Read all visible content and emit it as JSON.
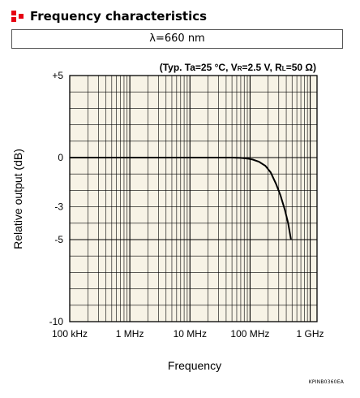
{
  "heading": {
    "title": "Frequency characteristics",
    "icon": "red-square-cluster-icon",
    "icon_color": "#e60012"
  },
  "wavelength_label": "λ=660 nm",
  "catalog_code": "KPINB0360EA",
  "colors": {
    "plot_background": "#f7f3e6",
    "grid": "#000000",
    "curve": "#000000"
  },
  "chart_data": {
    "type": "line",
    "title": "",
    "conditions": {
      "prefix": "(Typ. Ta=25 °C, V",
      "vr_sub": "R",
      "vr_rest": "=2.5 V, R",
      "rl_sub": "L",
      "rl_rest": "=50 Ω)"
    },
    "xlabel": "Frequency",
    "ylabel": "Relative output (dB)",
    "x_scale": "log",
    "xlim": [
      100000,
      1300000000
    ],
    "ylim": [
      -10,
      5
    ],
    "x_ticks": [
      {
        "value": 100000,
        "label": "100 kHz"
      },
      {
        "value": 1000000,
        "label": "1 MHz"
      },
      {
        "value": 10000000,
        "label": "10 MHz"
      },
      {
        "value": 100000000,
        "label": "100 MHz"
      },
      {
        "value": 1000000000,
        "label": "1 GHz"
      }
    ],
    "y_ticks": [
      {
        "value": 5,
        "label": "+5"
      },
      {
        "value": 0,
        "label": "0"
      },
      {
        "value": -3,
        "label": "-3"
      },
      {
        "value": -5,
        "label": "-5"
      },
      {
        "value": -10,
        "label": "-10"
      }
    ],
    "grid": true,
    "series": [
      {
        "x": [
          100000,
          1000000,
          10000000,
          50000000,
          70000000,
          90000000,
          110000000,
          140000000,
          180000000,
          220000000,
          270000000,
          320000000,
          380000000,
          430000000,
          480000000
        ],
        "y": [
          0,
          0,
          0,
          0,
          -0.02,
          -0.06,
          -0.12,
          -0.25,
          -0.5,
          -0.9,
          -1.6,
          -2.3,
          -3.2,
          -4.0,
          -5.0
        ]
      }
    ]
  }
}
